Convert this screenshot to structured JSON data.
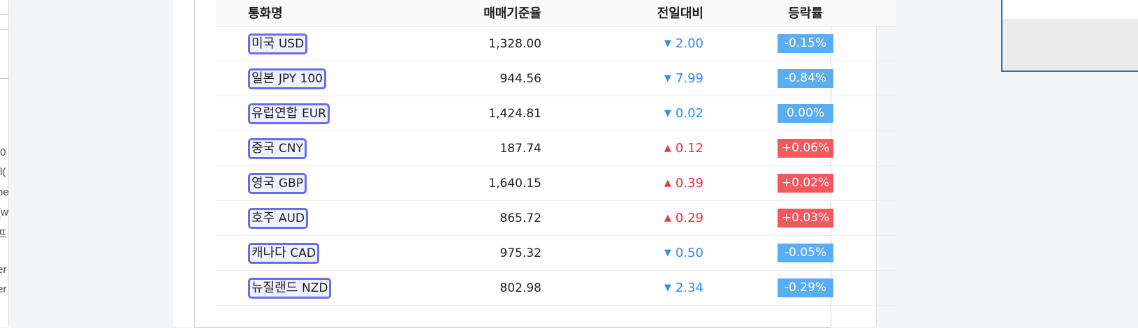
{
  "table": {
    "headers": {
      "currency": "통화명",
      "base_rate": "매매기준율",
      "change": "전일대비",
      "change_rate": "등락률"
    },
    "rows": [
      {
        "name": "미국",
        "code": "USD",
        "base_rate": "1,328.00",
        "direction": "down",
        "change": "2.00",
        "change_rate": "-0.15%"
      },
      {
        "name": "일본",
        "code": "JPY 100",
        "base_rate": "944.56",
        "direction": "down",
        "change": "7.99",
        "change_rate": "-0.84%"
      },
      {
        "name": "유럽연합",
        "code": "EUR",
        "base_rate": "1,424.81",
        "direction": "down",
        "change": "0.02",
        "change_rate": "0.00%"
      },
      {
        "name": "중국",
        "code": "CNY",
        "base_rate": "187.74",
        "direction": "up",
        "change": "0.12",
        "change_rate": "+0.06%"
      },
      {
        "name": "영국",
        "code": "GBP",
        "base_rate": "1,640.15",
        "direction": "up",
        "change": "0.39",
        "change_rate": "+0.02%"
      },
      {
        "name": "호주",
        "code": "AUD",
        "base_rate": "865.72",
        "direction": "up",
        "change": "0.29",
        "change_rate": "+0.03%"
      },
      {
        "name": "캐나다",
        "code": "CAD",
        "base_rate": "975.32",
        "direction": "down",
        "change": "0.50",
        "change_rate": "-0.05%"
      },
      {
        "name": "뉴질랜드",
        "code": "NZD",
        "base_rate": "802.98",
        "direction": "down",
        "change": "2.34",
        "change_rate": "-0.29%"
      }
    ]
  },
  "icons": {
    "down": "triangle-down-icon",
    "up": "triangle-up-icon"
  },
  "colors": {
    "down": "#2f8cf1",
    "up": "#e8323c",
    "down_badge": "#5aadf2",
    "up_badge": "#f2595f",
    "highlight_border": "#6a6cf0"
  },
  "left_window_fragments": [
    ".0",
    ".l(",
    "ne",
    "(w",
    "프",
    "er",
    "er"
  ]
}
